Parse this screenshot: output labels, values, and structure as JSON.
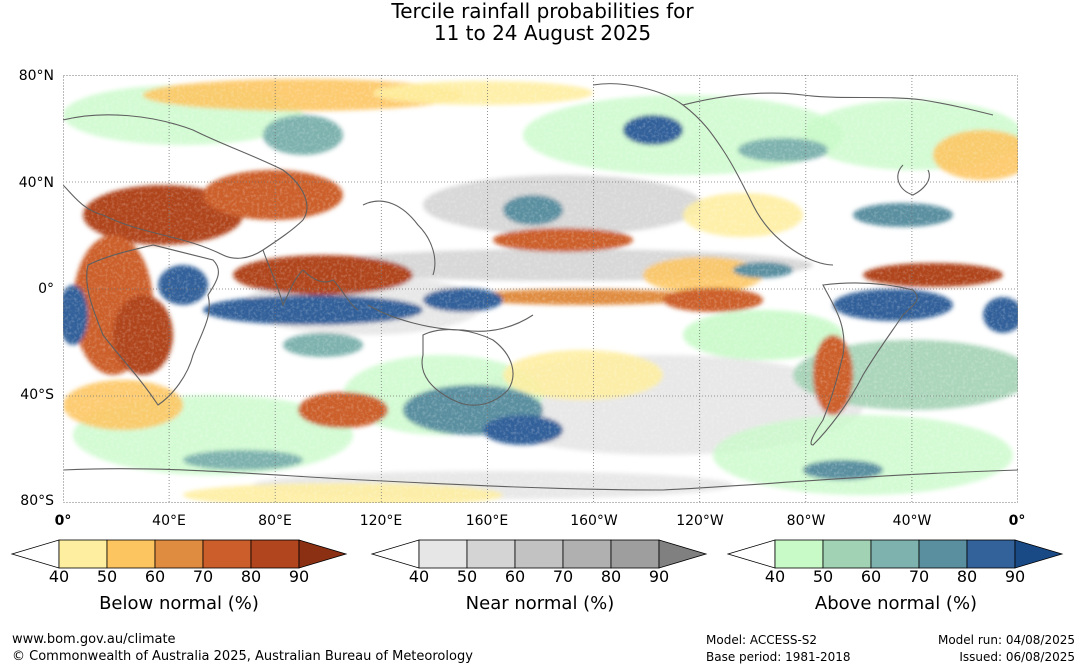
{
  "title": {
    "line1": "Tercile rainfall probabilities for",
    "line2": "11 to 24 August 2025"
  },
  "map": {
    "lat_labels": [
      "80°N",
      "40°N",
      "0°",
      "40°S",
      "80°S"
    ],
    "lon_labels": [
      "0°",
      "40°E",
      "80°E",
      "120°E",
      "160°E",
      "160°W",
      "120°W",
      "80°W",
      "40°W",
      "0°"
    ]
  },
  "legends": [
    {
      "title": "Below normal (%)",
      "ticks": [
        "40",
        "50",
        "60",
        "70",
        "80",
        "90"
      ],
      "colors": [
        "#ffffff",
        "#feeea0",
        "#fdc560",
        "#e08c40",
        "#cc5e2c",
        "#b0451e",
        "#8c3014"
      ]
    },
    {
      "title": "Near normal (%)",
      "ticks": [
        "40",
        "50",
        "60",
        "70",
        "80",
        "90"
      ],
      "colors": [
        "#ffffff",
        "#e6e6e6",
        "#d4d4d4",
        "#c2c2c2",
        "#b0b0b0",
        "#9e9e9e",
        "#808080"
      ]
    },
    {
      "title": "Above normal (%)",
      "ticks": [
        "40",
        "50",
        "60",
        "70",
        "80",
        "90"
      ],
      "colors": [
        "#ffffff",
        "#c8fac8",
        "#a2d2b4",
        "#7eb2ae",
        "#5a8fa0",
        "#33619a",
        "#1a4a86"
      ]
    }
  ],
  "footer": {
    "url": "www.bom.gov.au/climate",
    "copyright": "© Commonwealth of Australia 2025, Australian Bureau of Meteorology",
    "model": "Model: ACCESS-S2",
    "base_period": "Base period: 1981-2018",
    "model_run": "Model run: 04/08/2025",
    "issued": "Issued: 06/08/2025"
  }
}
